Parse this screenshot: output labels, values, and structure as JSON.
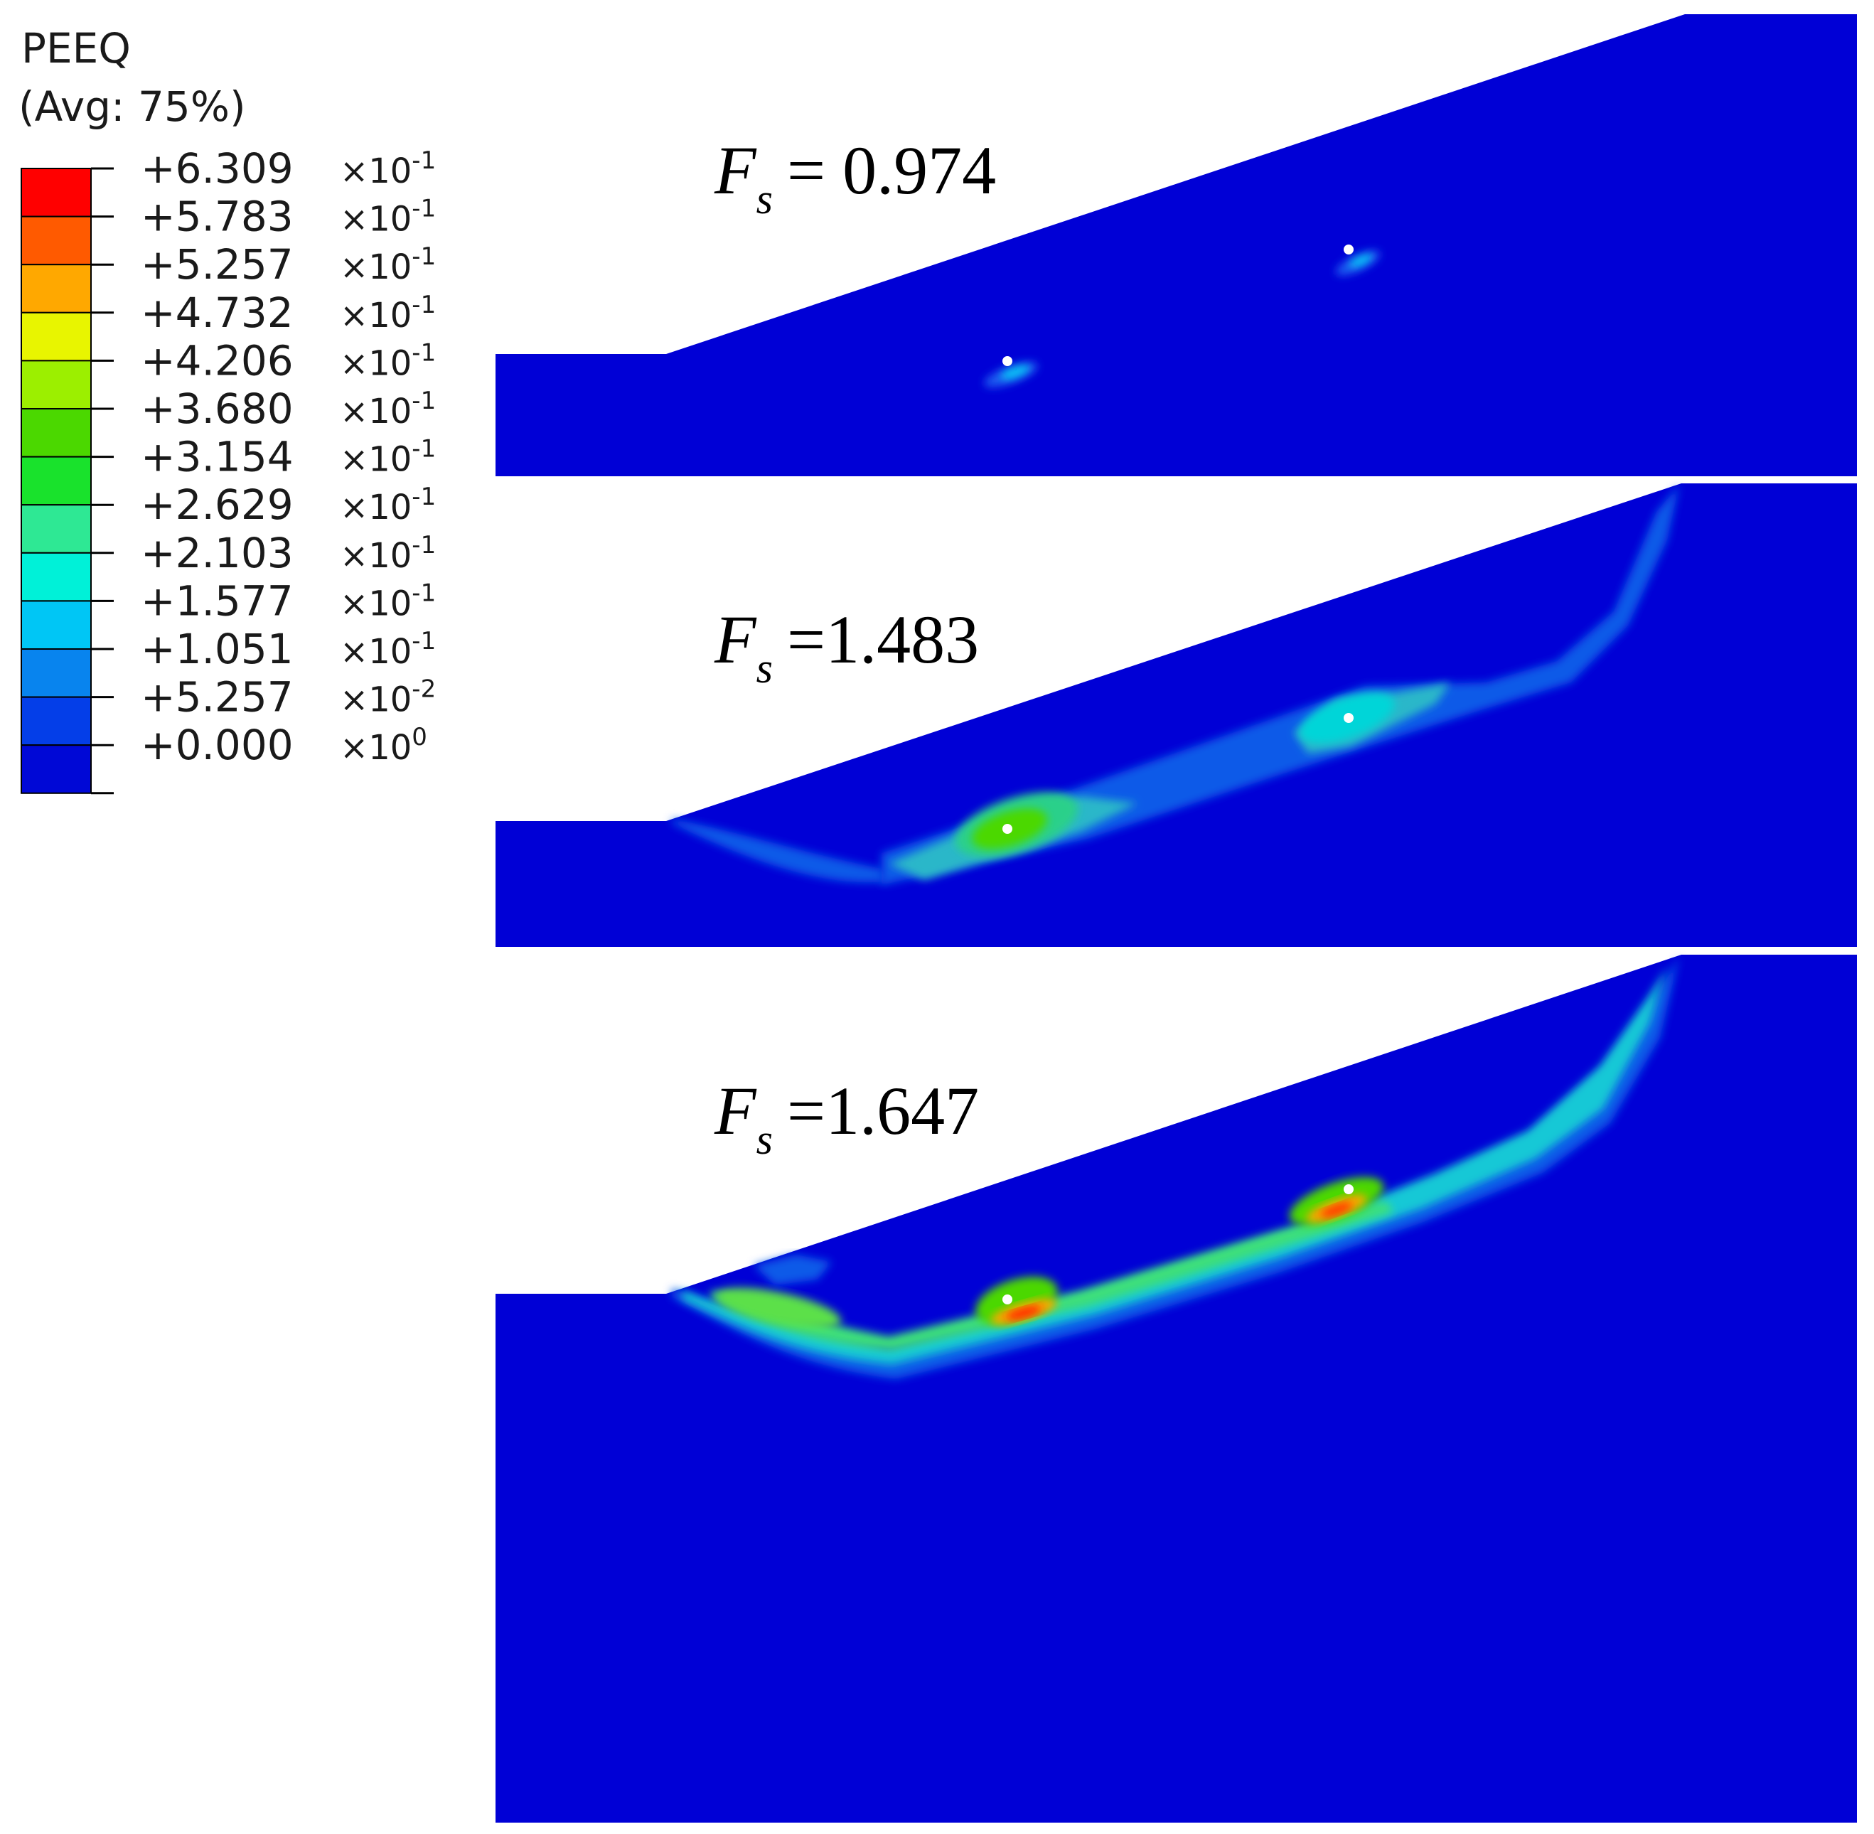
{
  "legend": {
    "title": "PEEQ",
    "subtitle": "(Avg: 75%)",
    "entries": [
      {
        "value": "+6.309",
        "exp": "×10",
        "sup": "-1",
        "color": "#ff0000"
      },
      {
        "value": "+5.783",
        "exp": "×10",
        "sup": "-1",
        "color": "#ff5a00"
      },
      {
        "value": "+5.257",
        "exp": "×10",
        "sup": "-1",
        "color": "#ffa800"
      },
      {
        "value": "+4.732",
        "exp": "×10",
        "sup": "-1",
        "color": "#e8f500"
      },
      {
        "value": "+4.206",
        "exp": "×10",
        "sup": "-1",
        "color": "#9cef00"
      },
      {
        "value": "+3.680",
        "exp": "×10",
        "sup": "-1",
        "color": "#4bd800"
      },
      {
        "value": "+3.154",
        "exp": "×10",
        "sup": "-1",
        "color": "#19e22c"
      },
      {
        "value": "+2.629",
        "exp": "×10",
        "sup": "-1",
        "color": "#2ee894"
      },
      {
        "value": "+2.103",
        "exp": "×10",
        "sup": "-1",
        "color": "#00f1d8"
      },
      {
        "value": "+1.577",
        "exp": "×10",
        "sup": "-1",
        "color": "#00c6f5"
      },
      {
        "value": "+1.051",
        "exp": "×10",
        "sup": "-1",
        "color": "#0884ee"
      },
      {
        "value": "+5.257",
        "exp": "×10",
        "sup": "-2",
        "color": "#043ee8"
      },
      {
        "value": "+0.000",
        "exp": "×10",
        "sup": "0",
        "color": "#0008d6"
      }
    ]
  },
  "panels": [
    {
      "fs_symbol": "F",
      "fs_sub": "s",
      "fs_value": "= 0.974"
    },
    {
      "fs_symbol": "F",
      "fs_sub": "s",
      "fs_value": "=1.483"
    },
    {
      "fs_symbol": "F",
      "fs_sub": "s",
      "fs_value": "=1.647"
    }
  ],
  "colors": {
    "background_mesh": "#0000d6",
    "marker": "#ffffff"
  }
}
